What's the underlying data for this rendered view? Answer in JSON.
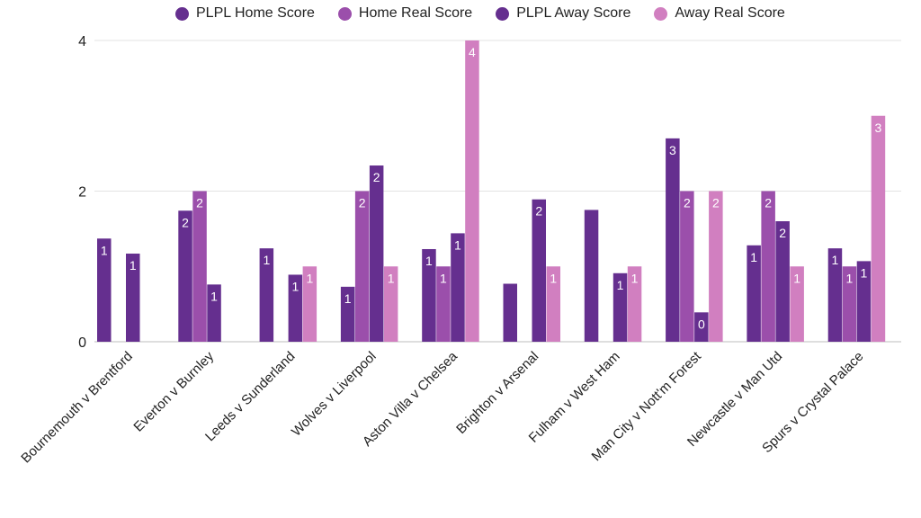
{
  "chart_data": {
    "type": "bar",
    "title": "",
    "xlabel": "",
    "ylabel": "",
    "ylim": [
      0,
      4
    ],
    "yticks": [
      0,
      2,
      4
    ],
    "grid": true,
    "legend_position": "top",
    "categories": [
      "Bournemouth v Brentford",
      "Everton v Burnley",
      "Leeds v Sunderland",
      "Wolves v Liverpool",
      "Aston Villa v Chelsea",
      "Brighton v Arsenal",
      "Fulham v West Ham",
      "Man City v Nott'm Forest",
      "Newcastle v Man Utd",
      "Spurs v Crystal Palace"
    ],
    "series": [
      {
        "name": "PLPL Home Score",
        "color": "#652f8f",
        "values": [
          1.37,
          1.74,
          1.24,
          0.73,
          1.23,
          0.77,
          1.75,
          2.7,
          1.28,
          1.24
        ],
        "labels": [
          "1",
          "2",
          "1",
          "1",
          "1",
          "",
          "",
          "3",
          "1",
          "1"
        ]
      },
      {
        "name": "Home Real Score",
        "color": "#9b4fab",
        "values": [
          null,
          2,
          null,
          2,
          1,
          null,
          null,
          2,
          2,
          1
        ],
        "labels": [
          "",
          "2",
          "",
          "2",
          "1",
          "",
          "",
          "2",
          "2",
          "1"
        ]
      },
      {
        "name": "PLPL Away Score",
        "color": "#652f8f",
        "values": [
          1.17,
          0.76,
          0.89,
          2.34,
          1.44,
          1.89,
          0.91,
          0.39,
          1.6,
          1.07
        ],
        "labels": [
          "1",
          "1",
          "1",
          "2",
          "1",
          "2",
          "1",
          "0",
          "2",
          "1"
        ]
      },
      {
        "name": "Away Real Score",
        "color": "#d17fc0",
        "values": [
          null,
          null,
          1,
          1,
          4,
          1,
          1,
          2,
          1,
          3
        ],
        "labels": [
          "",
          "",
          "1",
          "1",
          "4",
          "1",
          "1",
          "2",
          "1",
          "3"
        ]
      }
    ]
  }
}
